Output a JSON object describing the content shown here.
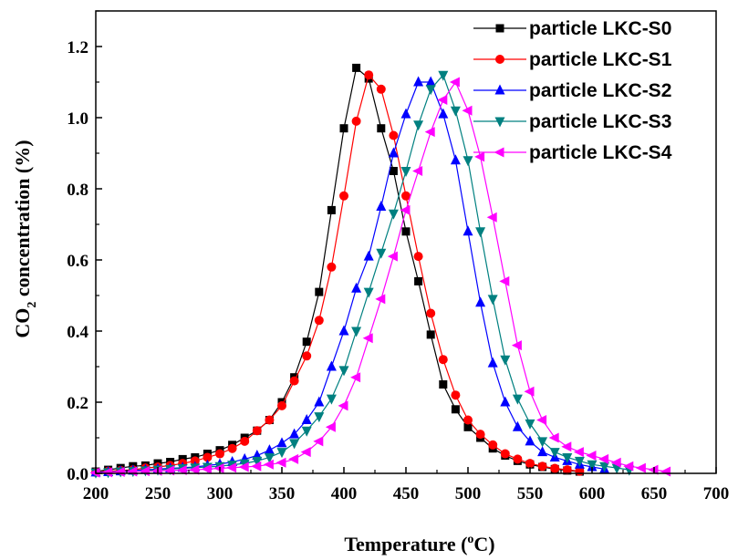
{
  "chart_data": {
    "type": "scatter",
    "xlabel": "Temperature (oC)",
    "xlabel_parts": {
      "main": "Temperature (",
      "sup": "o",
      "tail": "C)"
    },
    "ylabel": "CO2 concentration (%)",
    "ylabel_parts": {
      "main": "CO",
      "sub": "2",
      "tail": " concentration (%)"
    },
    "xlim": [
      200,
      700
    ],
    "ylim": [
      0,
      1.3
    ],
    "xticks": [
      200,
      250,
      300,
      350,
      400,
      450,
      500,
      550,
      600,
      650,
      700
    ],
    "yticks": [
      "0.0",
      "0.2",
      "0.4",
      "0.6",
      "0.8",
      "1.0",
      "1.2"
    ],
    "ytick_values": [
      0,
      0.2,
      0.4,
      0.6,
      0.8,
      1.0,
      1.2
    ],
    "legend_position": "top-right",
    "series": [
      {
        "name": "particle LKC-S0",
        "color": "#000000",
        "marker": "square",
        "x": [
          200,
          210,
          220,
          230,
          240,
          250,
          260,
          270,
          280,
          290,
          300,
          310,
          320,
          330,
          340,
          350,
          360,
          370,
          380,
          390,
          400,
          410,
          420,
          430,
          440,
          450,
          460,
          470,
          480,
          490,
          500,
          510,
          520,
          530,
          540,
          550,
          560,
          570,
          580,
          590
        ],
        "y": [
          0.005,
          0.01,
          0.015,
          0.02,
          0.022,
          0.028,
          0.032,
          0.04,
          0.045,
          0.055,
          0.065,
          0.08,
          0.1,
          0.12,
          0.15,
          0.2,
          0.27,
          0.37,
          0.51,
          0.74,
          0.97,
          1.14,
          1.11,
          0.97,
          0.85,
          0.68,
          0.54,
          0.39,
          0.25,
          0.18,
          0.13,
          0.1,
          0.07,
          0.05,
          0.035,
          0.025,
          0.018,
          0.012,
          0.008,
          0.005
        ]
      },
      {
        "name": "particle LKC-S1",
        "color": "#ff0000",
        "marker": "circle",
        "x": [
          200,
          210,
          220,
          230,
          240,
          250,
          260,
          270,
          280,
          290,
          300,
          310,
          320,
          330,
          340,
          350,
          360,
          370,
          380,
          390,
          400,
          410,
          420,
          430,
          440,
          450,
          460,
          470,
          480,
          490,
          500,
          510,
          520,
          530,
          540,
          550,
          560,
          570,
          580,
          590
        ],
        "y": [
          0.003,
          0.006,
          0.008,
          0.01,
          0.015,
          0.018,
          0.022,
          0.028,
          0.035,
          0.045,
          0.055,
          0.07,
          0.09,
          0.12,
          0.15,
          0.19,
          0.26,
          0.33,
          0.43,
          0.58,
          0.78,
          0.99,
          1.12,
          1.08,
          0.95,
          0.78,
          0.61,
          0.45,
          0.32,
          0.22,
          0.15,
          0.11,
          0.08,
          0.055,
          0.04,
          0.028,
          0.02,
          0.014,
          0.01,
          0.006
        ]
      },
      {
        "name": "particle LKC-S2",
        "color": "#0000ff",
        "marker": "triangle-up",
        "x": [
          200,
          210,
          220,
          230,
          240,
          250,
          260,
          270,
          280,
          290,
          300,
          310,
          320,
          330,
          340,
          350,
          360,
          370,
          380,
          390,
          400,
          410,
          420,
          430,
          440,
          450,
          460,
          470,
          480,
          490,
          500,
          510,
          520,
          530,
          540,
          550,
          560,
          570,
          580,
          590,
          600,
          610
        ],
        "y": [
          0.003,
          0.004,
          0.006,
          0.008,
          0.01,
          0.012,
          0.014,
          0.016,
          0.018,
          0.022,
          0.026,
          0.032,
          0.04,
          0.05,
          0.065,
          0.085,
          0.11,
          0.15,
          0.2,
          0.3,
          0.4,
          0.52,
          0.61,
          0.75,
          0.9,
          1.01,
          1.1,
          1.1,
          1.01,
          0.88,
          0.68,
          0.48,
          0.31,
          0.2,
          0.13,
          0.09,
          0.06,
          0.045,
          0.035,
          0.025,
          0.018,
          0.012
        ]
      },
      {
        "name": "particle LKC-S3",
        "color": "#008080",
        "marker": "triangle-down",
        "x": [
          200,
          210,
          220,
          230,
          240,
          250,
          260,
          270,
          280,
          290,
          300,
          310,
          320,
          330,
          340,
          350,
          360,
          370,
          380,
          390,
          400,
          410,
          420,
          430,
          440,
          450,
          460,
          470,
          480,
          490,
          500,
          510,
          520,
          530,
          540,
          550,
          560,
          570,
          580,
          590,
          600,
          610,
          620,
          630
        ],
        "y": [
          0.002,
          0.003,
          0.005,
          0.006,
          0.008,
          0.01,
          0.012,
          0.014,
          0.016,
          0.018,
          0.02,
          0.024,
          0.028,
          0.035,
          0.045,
          0.06,
          0.085,
          0.12,
          0.16,
          0.21,
          0.29,
          0.4,
          0.51,
          0.62,
          0.73,
          0.85,
          0.98,
          1.08,
          1.12,
          1.02,
          0.88,
          0.68,
          0.49,
          0.32,
          0.21,
          0.14,
          0.09,
          0.06,
          0.045,
          0.035,
          0.025,
          0.02,
          0.015,
          0.01
        ]
      },
      {
        "name": "particle LKC-S4",
        "color": "#ff00ff",
        "marker": "triangle-left",
        "x": [
          200,
          210,
          220,
          230,
          240,
          250,
          260,
          270,
          280,
          290,
          300,
          310,
          320,
          330,
          340,
          350,
          360,
          370,
          380,
          390,
          400,
          410,
          420,
          430,
          440,
          450,
          460,
          470,
          480,
          490,
          500,
          510,
          520,
          530,
          540,
          550,
          560,
          570,
          580,
          590,
          600,
          610,
          620,
          630,
          640,
          650,
          660
        ],
        "y": [
          0.002,
          0.003,
          0.004,
          0.005,
          0.006,
          0.007,
          0.008,
          0.009,
          0.01,
          0.012,
          0.014,
          0.016,
          0.018,
          0.02,
          0.025,
          0.03,
          0.04,
          0.06,
          0.09,
          0.13,
          0.19,
          0.27,
          0.38,
          0.49,
          0.61,
          0.74,
          0.85,
          0.96,
          1.05,
          1.1,
          1.02,
          0.89,
          0.72,
          0.54,
          0.36,
          0.23,
          0.15,
          0.1,
          0.075,
          0.06,
          0.05,
          0.04,
          0.03,
          0.02,
          0.015,
          0.01,
          0.005
        ]
      }
    ]
  }
}
